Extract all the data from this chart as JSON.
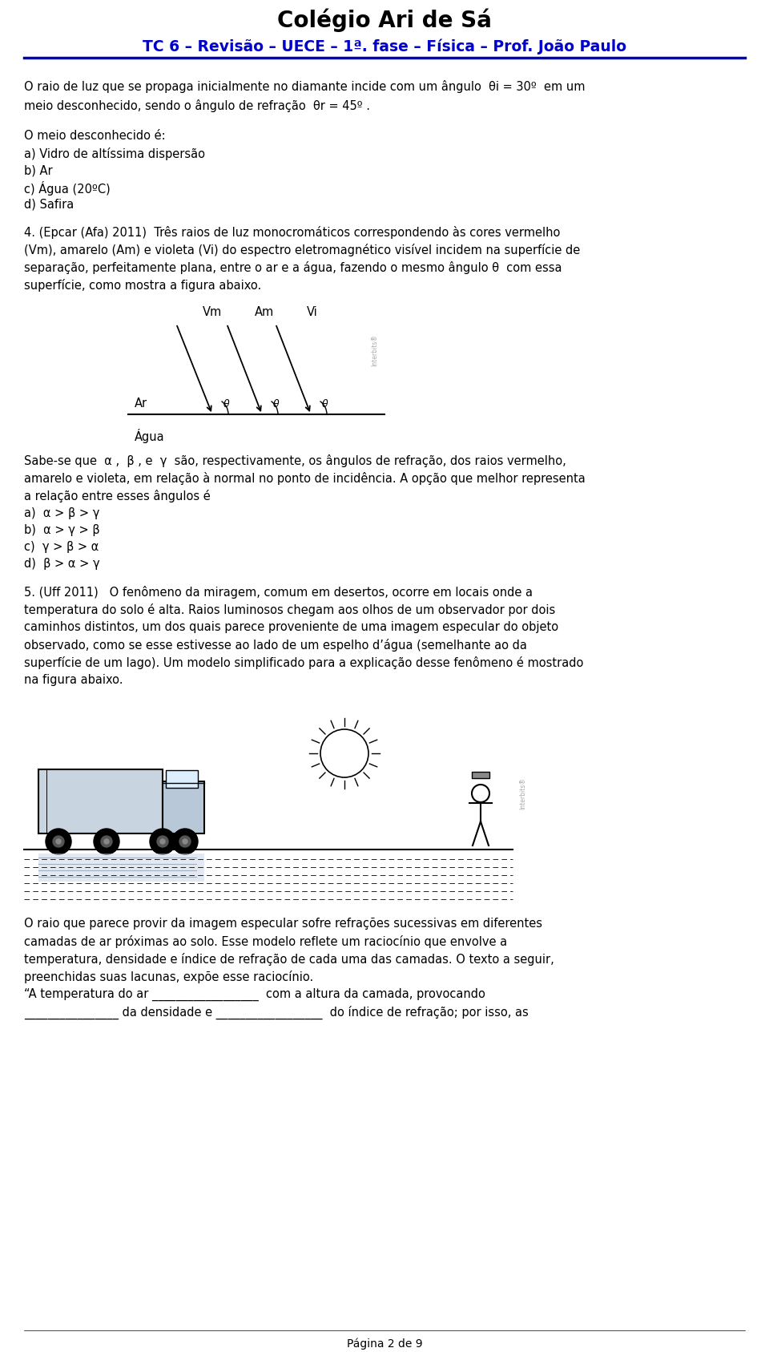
{
  "title": "Colégio Ari de Sá",
  "subtitle": "TC 6 – Revisão – UECE – 1ª. fase – Física – Prof. João Paulo",
  "bg_color": "#ffffff",
  "title_color": "#000000",
  "subtitle_color": "#0000cc",
  "body_text_color": "#000000",
  "body_fontsize": 10.5,
  "title_fontsize": 20,
  "subtitle_fontsize": 13.5,
  "p1_line1": "O raio de luz que se propaga inicialmente no diamante incide com um ângulo  θi = 30º  em um",
  "p1_line2": "meio desconhecido, sendo o ângulo de refração  θr = 45º .",
  "section_title": "O meio desconhecido é:",
  "options_q3": [
    "a) Vidro de altíssima dispersão",
    "b) Ar",
    "c) Água (20ºC)",
    "d) Safira"
  ],
  "q4_lines": [
    "4. (Epcar (Afa) 2011)  Três raios de luz monocromáticos correspondendo às cores vermelho",
    "(Vm), amarelo (Am) e violeta (Vi) do espectro eletromagnético visível incidem na superfície de",
    "separação, perfeitamente plana, entre o ar e a água, fazendo o mesmo ângulo θ  com essa",
    "superfície, como mostra a figura abaixo."
  ],
  "sabe_lines": [
    "Sabe-se que  α ,  β , e  γ  são, respectivamente, os ângulos de refração, dos raios vermelho,",
    "amarelo e violeta, em relação à normal no ponto de incidência. A opção que melhor representa",
    "a relação entre esses ângulos é"
  ],
  "options_q4": [
    "a)  α > β > γ",
    "b)  α > γ > β",
    "c)  γ > β > α",
    "d)  β > α > γ"
  ],
  "q5_lines": [
    "5. (Uff 2011)   O fenômeno da miragem, comum em desertos, ocorre em locais onde a",
    "temperatura do solo é alta. Raios luminosos chegam aos olhos de um observador por dois",
    "caminhos distintos, um dos quais parece proveniente de uma imagem especular do objeto",
    "observado, como se esse estivesse ao lado de um espelho d’água (semelhante ao da",
    "superfície de um lago). Um modelo simplificado para a explicação desse fenômeno é mostrado",
    "na figura abaixo."
  ],
  "bottom_lines": [
    "O raio que parece provir da imagem especular sofre refrações sucessivas em diferentes",
    "camadas de ar próximas ao solo. Esse modelo reflete um raciocínio que envolve a",
    "temperatura, densidade e índice de refração de cada uma das camadas. O texto a seguir,",
    "preenchidas suas lacunas, expõe esse raciocínio.",
    "“A temperatura do ar __________________  com a altura da camada, provocando",
    "________________ da densidade e __________________  do índice de refração; por isso, as"
  ],
  "footer": "Página 2 de 9"
}
